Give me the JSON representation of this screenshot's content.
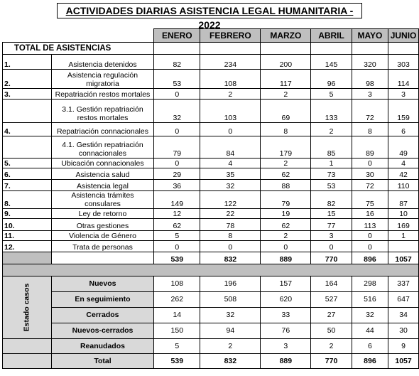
{
  "title": "ACTIVIDADES DIARIAS ASISTENCIA LEGAL HUMANITARIA - 2022",
  "months": [
    "ENERO",
    "FEBRERO",
    "MARZO",
    "ABRIL",
    "MAYO",
    "JUNIO"
  ],
  "section_title": "TOTAL DE ASISTENCIAS",
  "assist_rows": [
    {
      "num": "1.",
      "label": "Asistencia detenidos",
      "values": [
        "82",
        "234",
        "200",
        "145",
        "320",
        "303"
      ]
    },
    {
      "num": "2.",
      "label": "Asistencia regulación migratoria",
      "values": [
        "53",
        "108",
        "117",
        "96",
        "98",
        "114"
      ]
    },
    {
      "num": "3.",
      "label": "Repatriación restos mortales",
      "values": [
        "0",
        "2",
        "2",
        "5",
        "3",
        "3"
      ]
    },
    {
      "num": "",
      "label": "3.1. Gestión repatriación restos mortales",
      "values": [
        "32",
        "103",
        "69",
        "133",
        "72",
        "159"
      ]
    },
    {
      "num": "4.",
      "label": "Repatriación connacionales",
      "values": [
        "0",
        "0",
        "8",
        "2",
        "8",
        "6"
      ]
    },
    {
      "num": "",
      "label": "4.1. Gestión repatriación connacionales",
      "values": [
        "79",
        "84",
        "179",
        "85",
        "89",
        "49"
      ]
    },
    {
      "num": "5.",
      "label": "Ubicación connacionales",
      "values": [
        "0",
        "4",
        "2",
        "1",
        "0",
        "4"
      ]
    },
    {
      "num": "6.",
      "label": "Asistencia salud",
      "values": [
        "29",
        "35",
        "62",
        "73",
        "30",
        "42"
      ]
    },
    {
      "num": "7.",
      "label": "Asistencia legal",
      "values": [
        "36",
        "32",
        "88",
        "53",
        "72",
        "110"
      ]
    },
    {
      "num": "8.",
      "label": "Asistencia trámites consulares",
      "values": [
        "149",
        "122",
        "79",
        "82",
        "75",
        "87"
      ]
    },
    {
      "num": "9.",
      "label": "Ley de retorno",
      "values": [
        "12",
        "22",
        "19",
        "15",
        "16",
        "10"
      ]
    },
    {
      "num": "10.",
      "label": "Otras gestiones",
      "values": [
        "62",
        "78",
        "62",
        "77",
        "113",
        "169"
      ]
    },
    {
      "num": "11.",
      "label": "Violencia de Género",
      "values": [
        "5",
        "8",
        "2",
        "3",
        "0",
        "1"
      ]
    },
    {
      "num": "12.",
      "label": "Trata de personas",
      "values": [
        "0",
        "0",
        "0",
        "0",
        "0",
        ""
      ]
    }
  ],
  "assist_totals": [
    "539",
    "832",
    "889",
    "770",
    "896",
    "1057"
  ],
  "estado_label": "Estado casos",
  "estado_rows": [
    {
      "label": "Nuevos",
      "values": [
        "108",
        "196",
        "157",
        "164",
        "298",
        "337"
      ]
    },
    {
      "label": "En seguimiento",
      "values": [
        "262",
        "508",
        "620",
        "527",
        "516",
        "647"
      ]
    },
    {
      "label": "Cerrados",
      "values": [
        "14",
        "32",
        "33",
        "27",
        "32",
        "34"
      ]
    },
    {
      "label": "Nuevos-cerrados",
      "values": [
        "150",
        "94",
        "76",
        "50",
        "44",
        "30"
      ]
    },
    {
      "label": "Reanudados",
      "values": [
        "5",
        "2",
        "3",
        "2",
        "6",
        "9"
      ]
    }
  ],
  "total_label": "Total",
  "estado_totals": [
    "539",
    "832",
    "889",
    "770",
    "896",
    "1057"
  ]
}
